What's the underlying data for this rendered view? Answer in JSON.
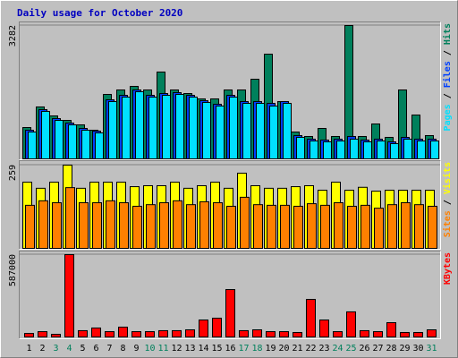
{
  "chart_data": [
    {
      "type": "bar",
      "title": "Daily usage for October 2020",
      "legend_separator": " / ",
      "ylim": [
        0,
        3282
      ],
      "yticks": [
        3282
      ],
      "series": [
        {
          "name": "Hits",
          "color": "#00805c",
          "values": [
            771,
            1278,
            1057,
            947,
            837,
            705,
            1586,
            1696,
            1784,
            1696,
            2137,
            1696,
            1608,
            1476,
            1476,
            1696,
            1696,
            1960,
            2577,
            1410,
            661,
            551,
            749,
            551,
            3282,
            551,
            859,
            529,
            1696,
            1079,
            573
          ]
        },
        {
          "name": "Files",
          "color": "#0040ff",
          "values": [
            705,
            1212,
            991,
            881,
            749,
            683,
            1454,
            1564,
            1696,
            1564,
            1608,
            1630,
            1564,
            1432,
            1344,
            1564,
            1410,
            1410,
            1366,
            1410,
            573,
            485,
            463,
            485,
            551,
            463,
            485,
            419,
            529,
            485,
            485
          ]
        },
        {
          "name": "Pages",
          "color": "#00e0ff",
          "values": [
            661,
            1168,
            947,
            837,
            705,
            639,
            1410,
            1520,
            1652,
            1520,
            1564,
            1586,
            1520,
            1388,
            1300,
            1520,
            1366,
            1366,
            1300,
            1366,
            529,
            441,
            419,
            441,
            485,
            419,
            441,
            375,
            485,
            441,
            441
          ]
        }
      ]
    },
    {
      "type": "bar",
      "ylim": [
        0,
        259
      ],
      "yticks": [
        259
      ],
      "series": [
        {
          "name": "Visits",
          "color": "#ffff00",
          "values": [
            206,
            187,
            206,
            259,
            187,
            206,
            206,
            206,
            192,
            195,
            195,
            206,
            187,
            195,
            206,
            187,
            234,
            195,
            187,
            187,
            192,
            195,
            181,
            206,
            181,
            190,
            178,
            181,
            181,
            181,
            181
          ]
        },
        {
          "name": "Sites",
          "color": "#ff8000",
          "values": [
            134,
            148,
            142,
            189,
            142,
            142,
            148,
            142,
            131,
            136,
            142,
            148,
            136,
            145,
            142,
            131,
            159,
            136,
            134,
            134,
            131,
            139,
            134,
            142,
            131,
            134,
            125,
            136,
            142,
            136,
            131
          ]
        }
      ]
    },
    {
      "type": "bar",
      "ylim": [
        0,
        587000
      ],
      "yticks": [
        587000
      ],
      "categories": [
        "1",
        "2",
        "3",
        "4",
        "5",
        "6",
        "7",
        "8",
        "9",
        "10",
        "11",
        "12",
        "13",
        "14",
        "15",
        "16",
        "17",
        "18",
        "19",
        "20",
        "21",
        "22",
        "23",
        "24",
        "25",
        "26",
        "27",
        "28",
        "29",
        "30",
        "31"
      ],
      "category_colors": [
        "#000000",
        "#000000",
        "#00805c",
        "#00805c",
        "#000000",
        "#000000",
        "#000000",
        "#000000",
        "#000000",
        "#00805c",
        "#00805c",
        "#000000",
        "#000000",
        "#000000",
        "#000000",
        "#000000",
        "#00805c",
        "#00805c",
        "#000000",
        "#000000",
        "#000000",
        "#000000",
        "#000000",
        "#00805c",
        "#00805c",
        "#000000",
        "#000000",
        "#000000",
        "#000000",
        "#000000",
        "#00805c"
      ],
      "series": [
        {
          "name": "KBytes",
          "color": "#ff0000",
          "values": [
            25000,
            38000,
            19000,
            587000,
            45000,
            64000,
            38000,
            70000,
            38000,
            38000,
            45000,
            45000,
            51000,
            121000,
            134000,
            338000,
            45000,
            51000,
            38000,
            38000,
            32000,
            268000,
            121000,
            38000,
            179000,
            45000,
            38000,
            102000,
            32000,
            32000,
            51000
          ]
        }
      ]
    }
  ]
}
